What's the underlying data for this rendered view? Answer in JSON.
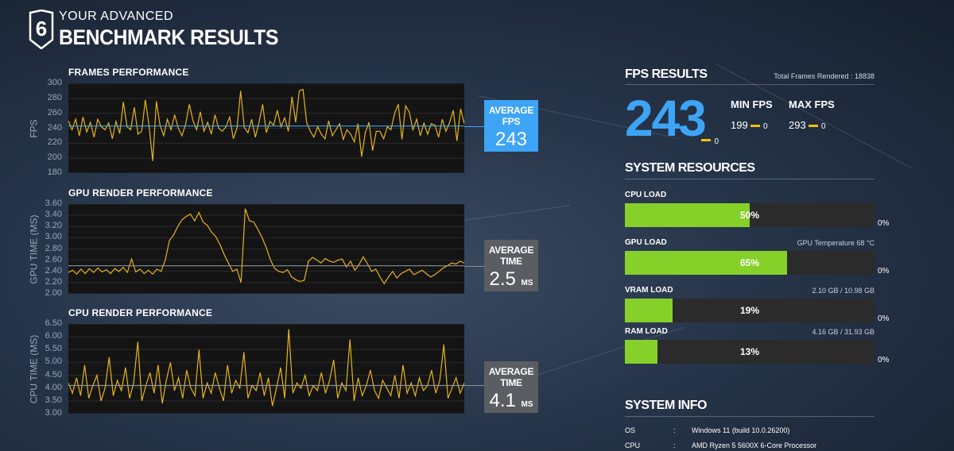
{
  "header": {
    "logo_number": "6",
    "title_small": "YOUR ADVANCED",
    "title_big": "BENCHMARK RESULTS"
  },
  "charts": [
    {
      "title": "FRAMES PERFORMANCE",
      "ylabel": "FPS",
      "yticks": [
        "300",
        "280",
        "260",
        "240",
        "220",
        "200",
        "180"
      ],
      "avg_label": "AVERAGE FPS",
      "avg_value": "243",
      "avg_unit": "",
      "chart_data": {
        "type": "line",
        "ylim": [
          180,
          300
        ],
        "average": 243,
        "values": [
          250,
          238,
          252,
          230,
          255,
          235,
          248,
          228,
          252,
          242,
          238,
          247,
          226,
          249,
          233,
          275,
          242,
          238,
          268,
          232,
          236,
          278,
          244,
          196,
          276,
          244,
          230,
          252,
          238,
          258,
          240,
          230,
          246,
          272,
          250,
          238,
          262,
          236,
          248,
          232,
          258,
          240,
          236,
          242,
          255,
          226,
          240,
          290,
          241,
          234,
          252,
          228,
          248,
          272,
          234,
          249,
          244,
          264,
          242,
          254,
          236,
          282,
          248,
          290,
          292,
          248,
          236,
          228,
          242,
          232,
          226,
          250,
          230,
          238,
          246,
          225,
          238,
          232,
          222,
          246,
          202,
          234,
          248,
          210,
          236,
          236,
          226,
          242,
          238,
          260,
          272,
          225,
          270,
          262,
          238,
          252,
          230,
          247,
          232,
          246,
          244,
          228,
          252,
          236,
          248,
          264,
          223,
          266,
          246
        ]
      }
    },
    {
      "title": "GPU RENDER PERFORMANCE",
      "ylabel": "GPU TIME (MS)",
      "yticks": [
        "3.60",
        "3.40",
        "3.20",
        "3.00",
        "2.80",
        "2.60",
        "2.40",
        "2.20",
        "2.00"
      ],
      "avg_label": "AVERAGE TIME",
      "avg_value": "2.5",
      "avg_unit": "MS",
      "chart_data": {
        "type": "line",
        "ylim": [
          2.0,
          3.6
        ],
        "average": 2.5,
        "values": [
          2.38,
          2.42,
          2.35,
          2.44,
          2.36,
          2.45,
          2.38,
          2.46,
          2.39,
          2.43,
          2.36,
          2.45,
          2.4,
          2.47,
          2.38,
          2.62,
          2.39,
          2.44,
          2.36,
          2.42,
          2.35,
          2.44,
          2.4,
          2.6,
          2.95,
          3.05,
          3.2,
          3.32,
          3.38,
          3.42,
          3.3,
          3.45,
          3.28,
          3.22,
          3.1,
          3.02,
          2.88,
          2.7,
          2.55,
          2.4,
          2.44,
          2.2,
          3.52,
          3.3,
          3.28,
          3.15,
          3.0,
          2.82,
          2.6,
          2.45,
          2.4,
          2.38,
          2.43,
          2.3,
          2.25,
          2.22,
          2.24,
          2.58,
          2.65,
          2.6,
          2.55,
          2.63,
          2.58,
          2.56,
          2.6,
          2.62,
          2.48,
          2.58,
          2.42,
          2.52,
          2.66,
          2.54,
          2.4,
          2.44,
          2.3,
          2.18,
          2.3,
          2.4,
          2.28,
          2.36,
          2.4,
          2.44,
          2.34,
          2.38,
          2.42,
          2.36,
          2.3,
          2.34,
          2.4,
          2.46,
          2.5,
          2.55,
          2.53,
          2.58,
          2.55
        ]
      }
    },
    {
      "title": "CPU RENDER PERFORMANCE",
      "ylabel": "CPU TIME (MS)",
      "yticks": [
        "6.50",
        "6.00",
        "5.50",
        "5.00",
        "4.50",
        "4.00",
        "3.50",
        "3.00"
      ],
      "avg_label": "AVERAGE TIME",
      "avg_value": "4.1",
      "avg_unit": "MS",
      "chart_data": {
        "type": "line",
        "ylim": [
          3.0,
          6.5
        ],
        "average": 4.1,
        "values": [
          4.2,
          3.8,
          4.4,
          3.7,
          4.9,
          3.6,
          4.1,
          4.5,
          3.5,
          4.0,
          5.2,
          3.7,
          4.3,
          3.9,
          4.8,
          3.6,
          4.2,
          5.8,
          3.5,
          4.1,
          4.6,
          3.8,
          4.9,
          3.4,
          4.3,
          5.0,
          3.9,
          4.4,
          3.6,
          4.7,
          4.0,
          3.7,
          5.5,
          3.6,
          4.2,
          3.8,
          4.6,
          4.0,
          3.5,
          4.9,
          3.8,
          4.3,
          4.0,
          5.4,
          3.6,
          4.1,
          3.9,
          4.6,
          3.7,
          4.4,
          3.3,
          4.0,
          4.8,
          3.6,
          6.3,
          3.8,
          4.2,
          4.0,
          4.5,
          3.7,
          4.1,
          3.9,
          4.6,
          3.8,
          4.3,
          5.1,
          3.6,
          4.2,
          3.9,
          5.9,
          3.5,
          4.4,
          3.7,
          4.1,
          4.7,
          3.9,
          3.6,
          4.3,
          4.0,
          3.7,
          4.5,
          3.6,
          4.9,
          3.8,
          4.2,
          3.7,
          4.4,
          3.9,
          4.1,
          4.7,
          3.8,
          4.3,
          5.7,
          3.6,
          4.0,
          4.4,
          3.8,
          4.2
        ]
      }
    }
  ],
  "fps_results": {
    "title": "FPS RESULTS",
    "total_frames": "Total Frames Rendered : 18838",
    "avg": "243",
    "avg_zero": "0",
    "min_label": "MIN FPS",
    "min": "199",
    "min_zero": "0",
    "max_label": "MAX FPS",
    "max": "293",
    "max_zero": "0"
  },
  "system_resources": {
    "title": "SYSTEM RESOURCES",
    "items": [
      {
        "label": "CPU LOAD",
        "note": "",
        "value": "50%",
        "fraction": 0.5,
        "zero": "0%"
      },
      {
        "label": "GPU LOAD",
        "note": "GPU Temperature 68 °C",
        "value": "65%",
        "fraction": 0.65,
        "zero": "0%"
      },
      {
        "label": "VRAM LOAD",
        "note": "2.10 GB / 10.98 GB",
        "value": "19%",
        "fraction": 0.19,
        "zero": "0%"
      },
      {
        "label": "RAM LOAD",
        "note": "4.16 GB / 31.93 GB",
        "value": "13%",
        "fraction": 0.13,
        "zero": "0%"
      }
    ]
  },
  "system_info": {
    "title": "SYSTEM INFO",
    "rows": [
      {
        "key": "OS",
        "sep": ":",
        "value": "Windows 11 (build 10.0.26200)"
      },
      {
        "key": "CPU",
        "sep": ":",
        "value": "AMD Ryzen 5 5600X 6-Core Processor"
      }
    ]
  },
  "colors": {
    "accent_blue": "#3ea4f5",
    "line_yellow": "#e6b31e",
    "bar_green": "#86d02a",
    "avg_grey": "#5a5e63"
  }
}
